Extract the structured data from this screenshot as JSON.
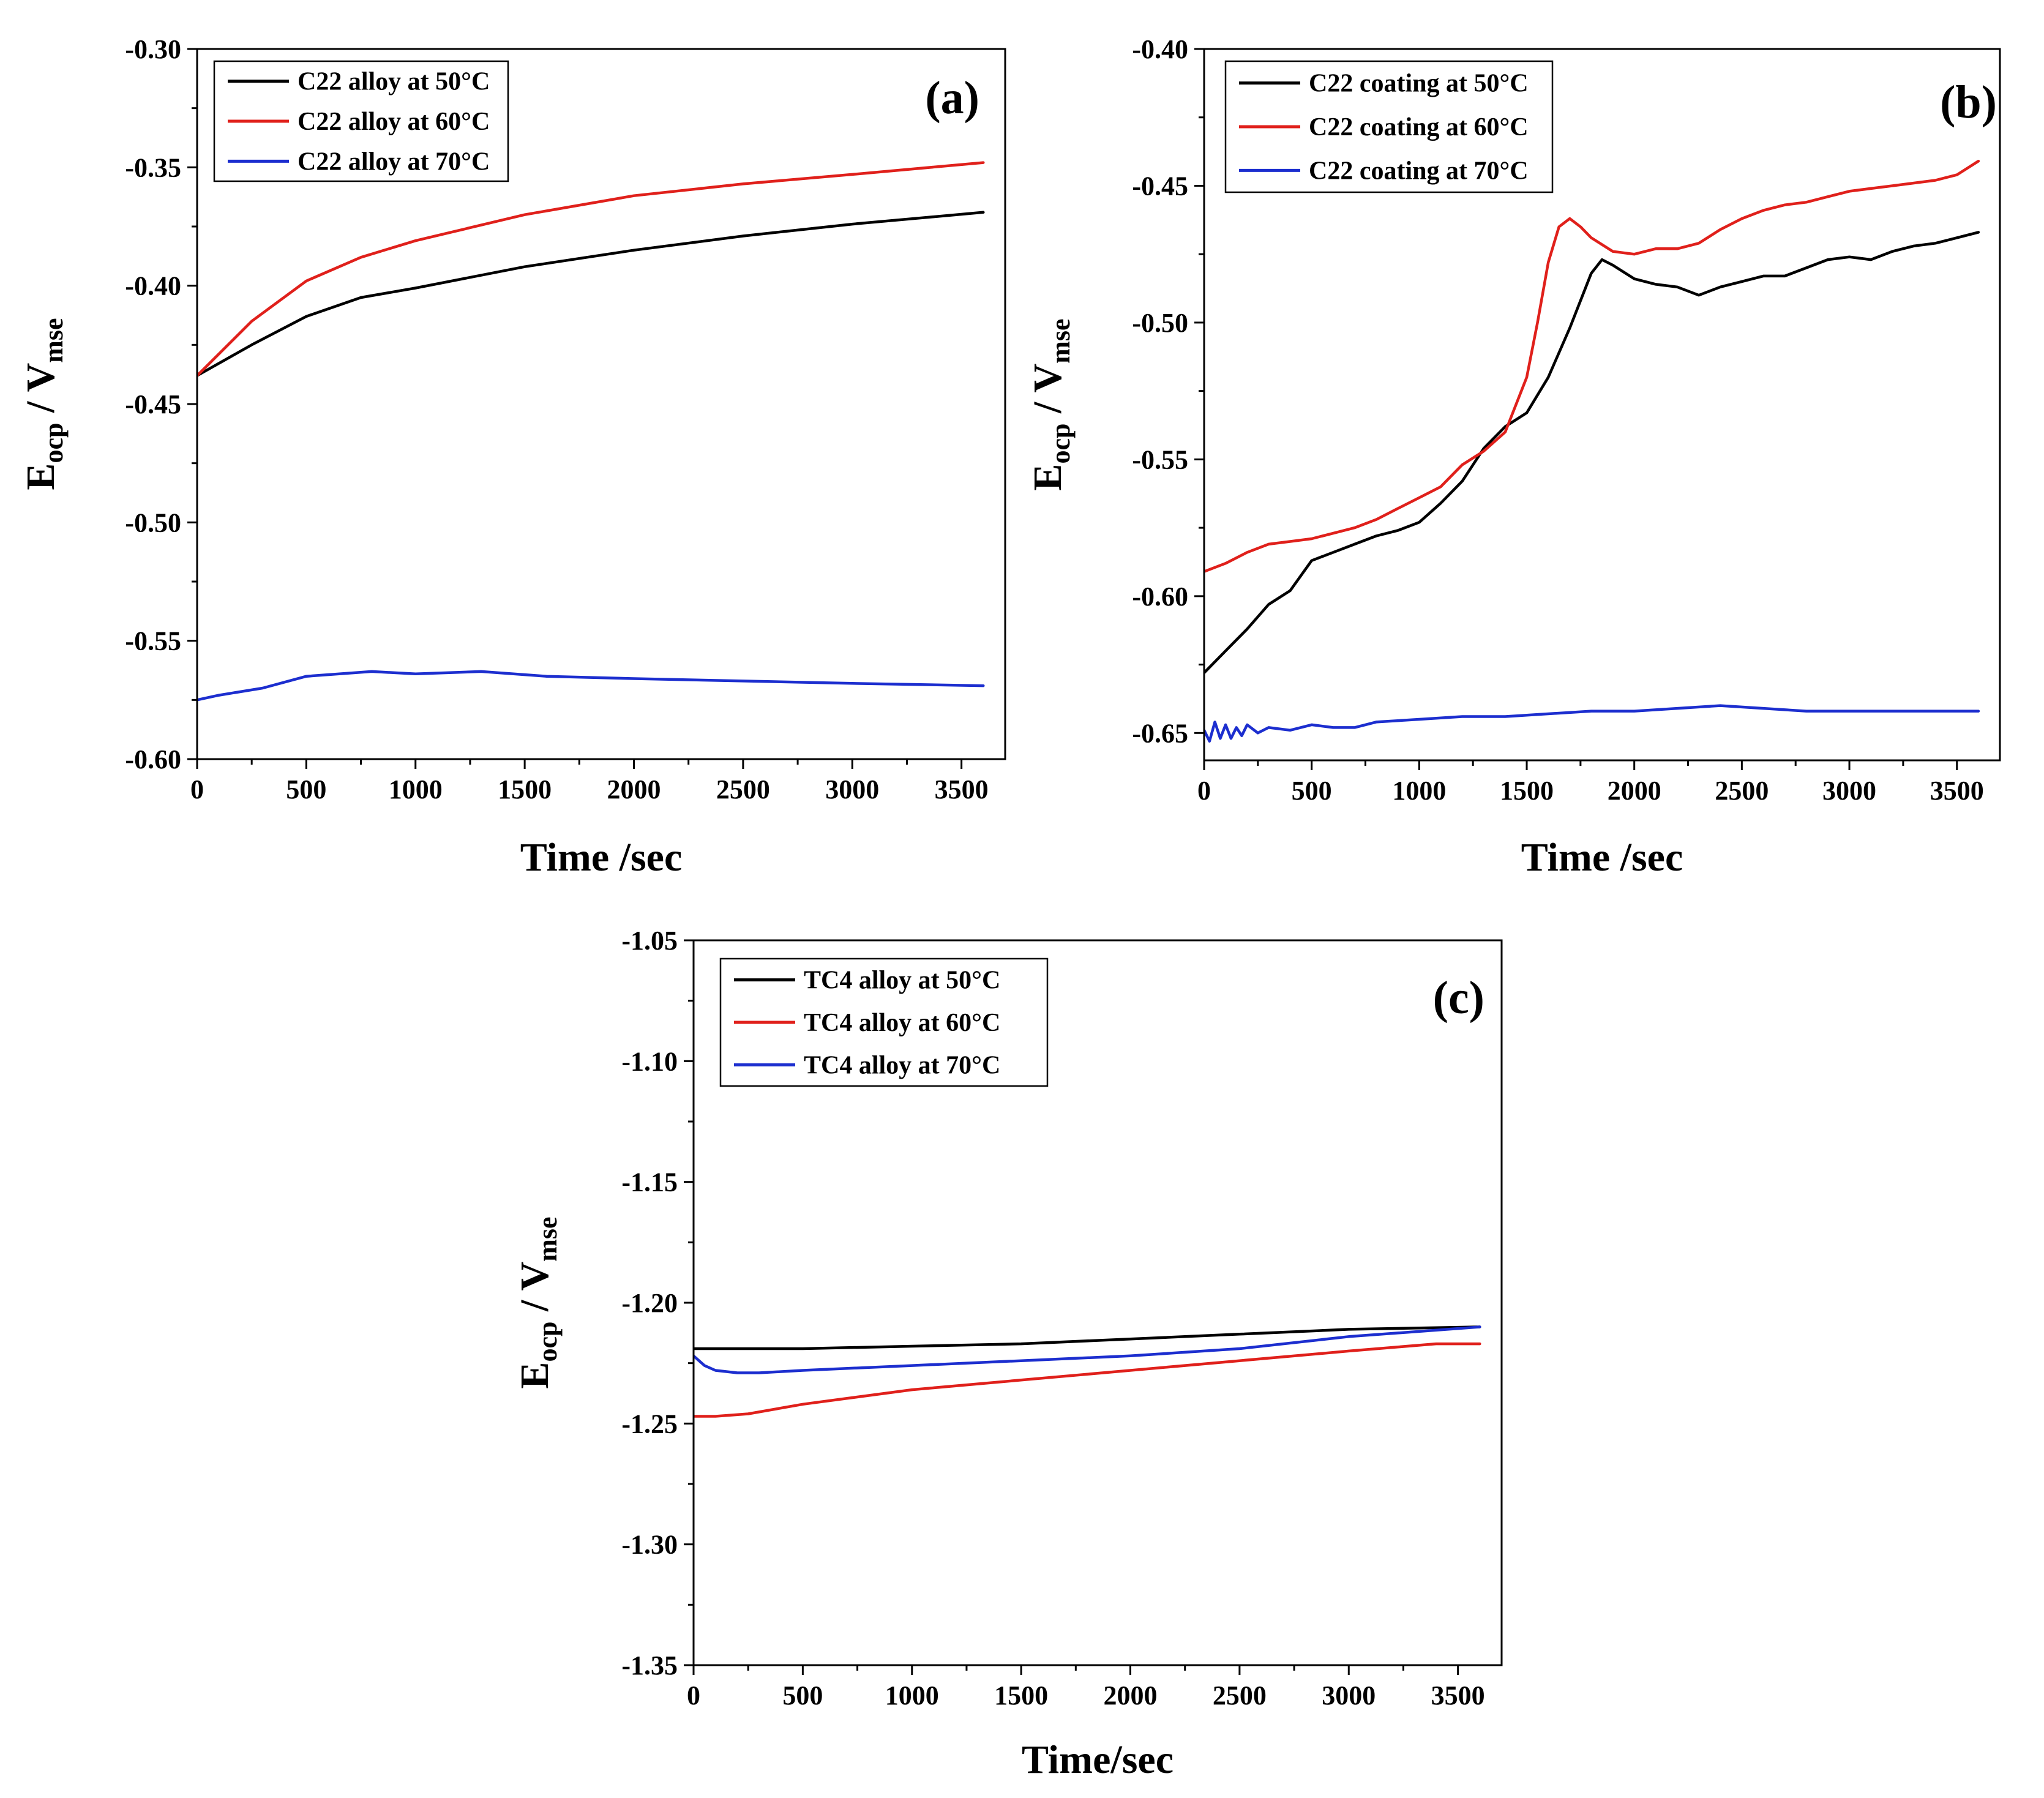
{
  "chart_data": [
    {
      "type": "line",
      "panel_label": "(a)",
      "xlabel": "Time /sec",
      "ylabel_main": "E",
      "ylabel_sub1": "ocp",
      "ylabel_mid": " / V",
      "ylabel_sub2": "mse",
      "xlim": [
        0,
        3700
      ],
      "ylim": [
        -0.6,
        -0.3
      ],
      "xticks": [
        0,
        500,
        1000,
        1500,
        2000,
        2500,
        3000,
        3500
      ],
      "xtick_labels": [
        "0",
        "500",
        "1000",
        "1500",
        "2000",
        "2500",
        "3000",
        "3500"
      ],
      "yticks": [
        -0.6,
        -0.55,
        -0.5,
        -0.45,
        -0.4,
        -0.35,
        -0.3
      ],
      "ytick_labels": [
        "-0.60",
        "-0.55",
        "-0.50",
        "-0.45",
        "-0.40",
        "-0.35",
        "-0.30"
      ],
      "legend_position": "top-left",
      "series": [
        {
          "name": "C22 alloy at 50°C",
          "color": "#000000",
          "x": [
            0,
            250,
            500,
            750,
            1000,
            1500,
            2000,
            2500,
            3000,
            3600
          ],
          "y": [
            -0.438,
            -0.425,
            -0.413,
            -0.405,
            -0.401,
            -0.392,
            -0.385,
            -0.379,
            -0.374,
            -0.369
          ]
        },
        {
          "name": "C22 alloy at 60°C",
          "color": "#e0201b",
          "x": [
            0,
            250,
            500,
            750,
            1000,
            1500,
            2000,
            2500,
            3000,
            3600
          ],
          "y": [
            -0.438,
            -0.415,
            -0.398,
            -0.388,
            -0.381,
            -0.37,
            -0.362,
            -0.357,
            -0.353,
            -0.348
          ]
        },
        {
          "name": "C22 alloy at 70°C",
          "color": "#1c2ecf",
          "x": [
            0,
            100,
            300,
            500,
            800,
            1000,
            1300,
            1600,
            2000,
            2500,
            3000,
            3600
          ],
          "y": [
            -0.575,
            -0.573,
            -0.57,
            -0.565,
            -0.563,
            -0.564,
            -0.563,
            -0.565,
            -0.566,
            -0.567,
            -0.568,
            -0.569
          ]
        }
      ]
    },
    {
      "type": "line",
      "panel_label": "(b)",
      "xlabel": "Time /sec",
      "ylabel_main": "E",
      "ylabel_sub1": "ocp",
      "ylabel_mid": " / V",
      "ylabel_sub2": "mse",
      "xlim": [
        0,
        3700
      ],
      "ylim": [
        -0.66,
        -0.4
      ],
      "xticks": [
        0,
        500,
        1000,
        1500,
        2000,
        2500,
        3000,
        3500
      ],
      "xtick_labels": [
        "0",
        "500",
        "1000",
        "1500",
        "2000",
        "2500",
        "3000",
        "3500"
      ],
      "yticks": [
        -0.65,
        -0.6,
        -0.55,
        -0.5,
        -0.45,
        -0.4
      ],
      "ytick_labels": [
        "-0.65",
        "-0.60",
        "-0.55",
        "-0.50",
        "-0.45",
        "-0.40"
      ],
      "legend_position": "top-left",
      "series": [
        {
          "name": "C22 coating at 50°C",
          "color": "#000000",
          "x": [
            0,
            100,
            200,
            300,
            400,
            500,
            600,
            700,
            800,
            900,
            1000,
            1100,
            1200,
            1300,
            1400,
            1500,
            1600,
            1700,
            1800,
            1850,
            1900,
            2000,
            2100,
            2200,
            2300,
            2400,
            2500,
            2600,
            2700,
            2800,
            2900,
            3000,
            3100,
            3200,
            3300,
            3400,
            3500,
            3600
          ],
          "y": [
            -0.628,
            -0.62,
            -0.612,
            -0.603,
            -0.598,
            -0.587,
            -0.584,
            -0.581,
            -0.578,
            -0.576,
            -0.573,
            -0.566,
            -0.558,
            -0.546,
            -0.538,
            -0.533,
            -0.52,
            -0.502,
            -0.482,
            -0.477,
            -0.479,
            -0.484,
            -0.486,
            -0.487,
            -0.49,
            -0.487,
            -0.485,
            -0.483,
            -0.483,
            -0.48,
            -0.477,
            -0.476,
            -0.477,
            -0.474,
            -0.472,
            -0.471,
            -0.469,
            -0.467
          ]
        },
        {
          "name": "C22 coating at 60°C",
          "color": "#e0201b",
          "x": [
            0,
            100,
            200,
            300,
            400,
            500,
            600,
            700,
            800,
            900,
            1000,
            1100,
            1200,
            1300,
            1400,
            1500,
            1550,
            1600,
            1650,
            1700,
            1750,
            1800,
            1900,
            2000,
            2100,
            2200,
            2300,
            2400,
            2500,
            2600,
            2700,
            2800,
            2900,
            3000,
            3100,
            3200,
            3300,
            3400,
            3500,
            3600
          ],
          "y": [
            -0.591,
            -0.588,
            -0.584,
            -0.581,
            -0.58,
            -0.579,
            -0.577,
            -0.575,
            -0.572,
            -0.568,
            -0.564,
            -0.56,
            -0.552,
            -0.547,
            -0.54,
            -0.52,
            -0.5,
            -0.478,
            -0.465,
            -0.462,
            -0.465,
            -0.469,
            -0.474,
            -0.475,
            -0.473,
            -0.473,
            -0.471,
            -0.466,
            -0.462,
            -0.459,
            -0.457,
            -0.456,
            -0.454,
            -0.452,
            -0.451,
            -0.45,
            -0.449,
            -0.448,
            -0.446,
            -0.441
          ]
        },
        {
          "name": "C22 coating at 70°C",
          "color": "#1c2ecf",
          "x": [
            0,
            25,
            50,
            75,
            100,
            125,
            150,
            175,
            200,
            250,
            300,
            400,
            500,
            600,
            700,
            800,
            1000,
            1200,
            1400,
            1600,
            1800,
            2000,
            2200,
            2400,
            2600,
            2800,
            3000,
            3200,
            3400,
            3600
          ],
          "y": [
            -0.649,
            -0.653,
            -0.646,
            -0.652,
            -0.647,
            -0.652,
            -0.648,
            -0.651,
            -0.647,
            -0.65,
            -0.648,
            -0.649,
            -0.647,
            -0.648,
            -0.648,
            -0.646,
            -0.645,
            -0.644,
            -0.644,
            -0.643,
            -0.642,
            -0.642,
            -0.641,
            -0.64,
            -0.641,
            -0.642,
            -0.642,
            -0.642,
            -0.642,
            -0.642
          ]
        }
      ]
    },
    {
      "type": "line",
      "panel_label": "(c)",
      "xlabel": "Time/sec",
      "ylabel_main": "E",
      "ylabel_sub1": "ocp",
      "ylabel_mid": " / V",
      "ylabel_sub2": "mse",
      "xlim": [
        0,
        3700
      ],
      "ylim": [
        -1.35,
        -1.05
      ],
      "xticks": [
        0,
        500,
        1000,
        1500,
        2000,
        2500,
        3000,
        3500
      ],
      "xtick_labels": [
        "0",
        "500",
        "1000",
        "1500",
        "2000",
        "2500",
        "3000",
        "3500"
      ],
      "yticks": [
        -1.35,
        -1.3,
        -1.25,
        -1.2,
        -1.15,
        -1.1,
        -1.05
      ],
      "ytick_labels": [
        "-1.35",
        "-1.30",
        "-1.25",
        "-1.20",
        "-1.15",
        "-1.10",
        "-1.05"
      ],
      "legend_position": "top-left",
      "series": [
        {
          "name": "TC4 alloy at 50°C",
          "color": "#000000",
          "x": [
            0,
            250,
            500,
            1000,
            1500,
            2000,
            2500,
            3000,
            3600
          ],
          "y": [
            -1.219,
            -1.219,
            -1.219,
            -1.218,
            -1.217,
            -1.215,
            -1.213,
            -1.211,
            -1.21
          ]
        },
        {
          "name": "TC4 alloy at 60°C",
          "color": "#e0201b",
          "x": [
            0,
            100,
            250,
            500,
            1000,
            1500,
            2000,
            2500,
            3000,
            3400,
            3600
          ],
          "y": [
            -1.247,
            -1.247,
            -1.246,
            -1.242,
            -1.236,
            -1.232,
            -1.228,
            -1.224,
            -1.22,
            -1.217,
            -1.217
          ]
        },
        {
          "name": "TC4 alloy at 70°C",
          "color": "#1c2ecf",
          "x": [
            0,
            50,
            100,
            200,
            300,
            500,
            1000,
            1500,
            2000,
            2500,
            3000,
            3600
          ],
          "y": [
            -1.222,
            -1.226,
            -1.228,
            -1.229,
            -1.229,
            -1.228,
            -1.226,
            -1.224,
            -1.222,
            -1.219,
            -1.214,
            -1.21
          ]
        }
      ]
    }
  ]
}
